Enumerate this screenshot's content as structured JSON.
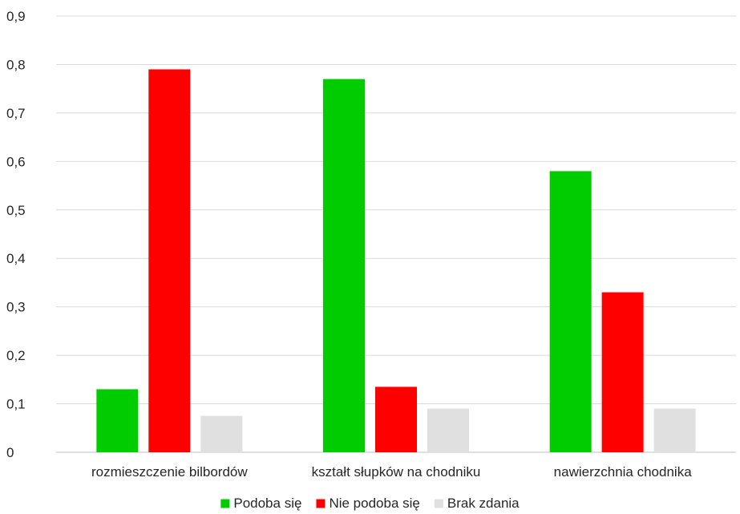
{
  "chart_data": {
    "type": "bar",
    "categories": [
      "rozmieszczenie bilbordów",
      "kształt słupków na chodniku",
      "nawierzchnia chodnika"
    ],
    "series": [
      {
        "name": "Podoba się",
        "color": "#00CC00",
        "values": [
          0.13,
          0.77,
          0.58
        ]
      },
      {
        "name": "Nie podoba się",
        "color": "#FF0000",
        "values": [
          0.79,
          0.135,
          0.33
        ]
      },
      {
        "name": "Brak zdania",
        "color": "#E0E0E0",
        "values": [
          0.075,
          0.09,
          0.09
        ]
      }
    ],
    "ylim": [
      0,
      0.9
    ],
    "yticks": [
      "0",
      "0,1",
      "0,2",
      "0,3",
      "0,4",
      "0,5",
      "0,6",
      "0,7",
      "0,8",
      "0,9"
    ],
    "grid": true,
    "legend": "bottom"
  }
}
